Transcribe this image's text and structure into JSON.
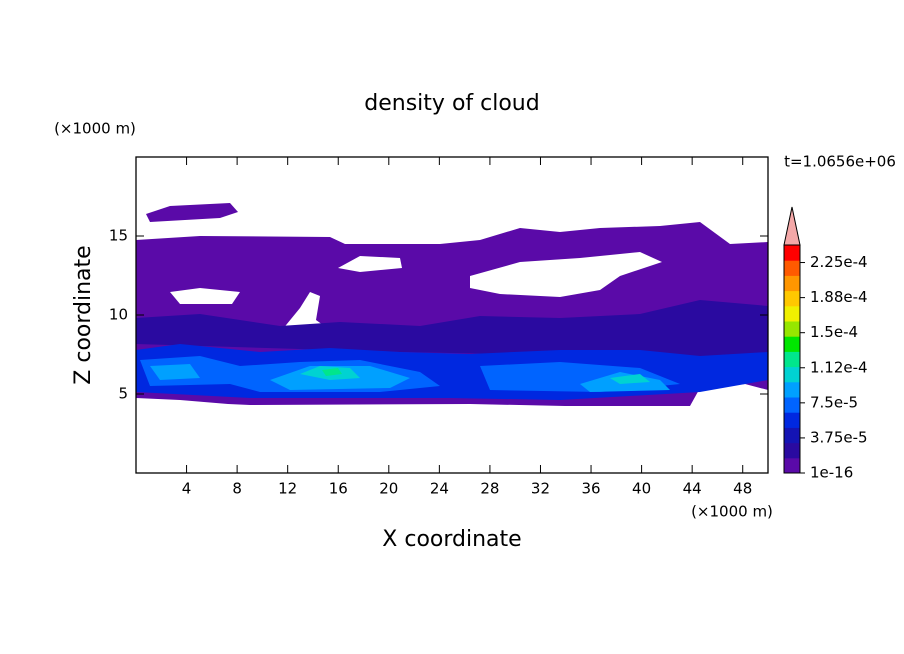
{
  "chart_data": {
    "type": "contour",
    "title": "density of cloud",
    "x_label": "X coordinate",
    "y_label": "Z coordinate",
    "x_unit": "(×1000 m)",
    "y_unit": "(×1000 m)",
    "annotation": "t=1.0656e+06",
    "xlim": [
      0,
      50
    ],
    "ylim": [
      0,
      20
    ],
    "xticks": [
      4,
      8,
      12,
      16,
      20,
      24,
      28,
      32,
      36,
      40,
      44,
      48
    ],
    "yticks": [
      5,
      10,
      15
    ],
    "colorbar": {
      "lim": [
        0,
        0.00024375
      ],
      "levels": [
        {
          "value": 1e-16,
          "label": "1e-16"
        },
        {
          "value": 3.75e-05,
          "label": "3.75e-5"
        },
        {
          "value": 7.5e-05,
          "label": "7.5e-5"
        },
        {
          "value": 0.0001125,
          "label": "1.12e-4"
        },
        {
          "value": 0.00015,
          "label": "1.5e-4"
        },
        {
          "value": 0.0001875,
          "label": "1.88e-4"
        },
        {
          "value": 0.000225,
          "label": "2.25e-4"
        }
      ],
      "colors": [
        "#5a0aa8",
        "#2a0aa0",
        "#1414b4",
        "#0028e0",
        "#0064ff",
        "#00a0ff",
        "#00d2d2",
        "#00e68c",
        "#00e600",
        "#96e600",
        "#f0f000",
        "#ffc800",
        "#ff9600",
        "#ff5a00",
        "#ff0000"
      ],
      "extend_color": "#f4a8a8"
    }
  }
}
